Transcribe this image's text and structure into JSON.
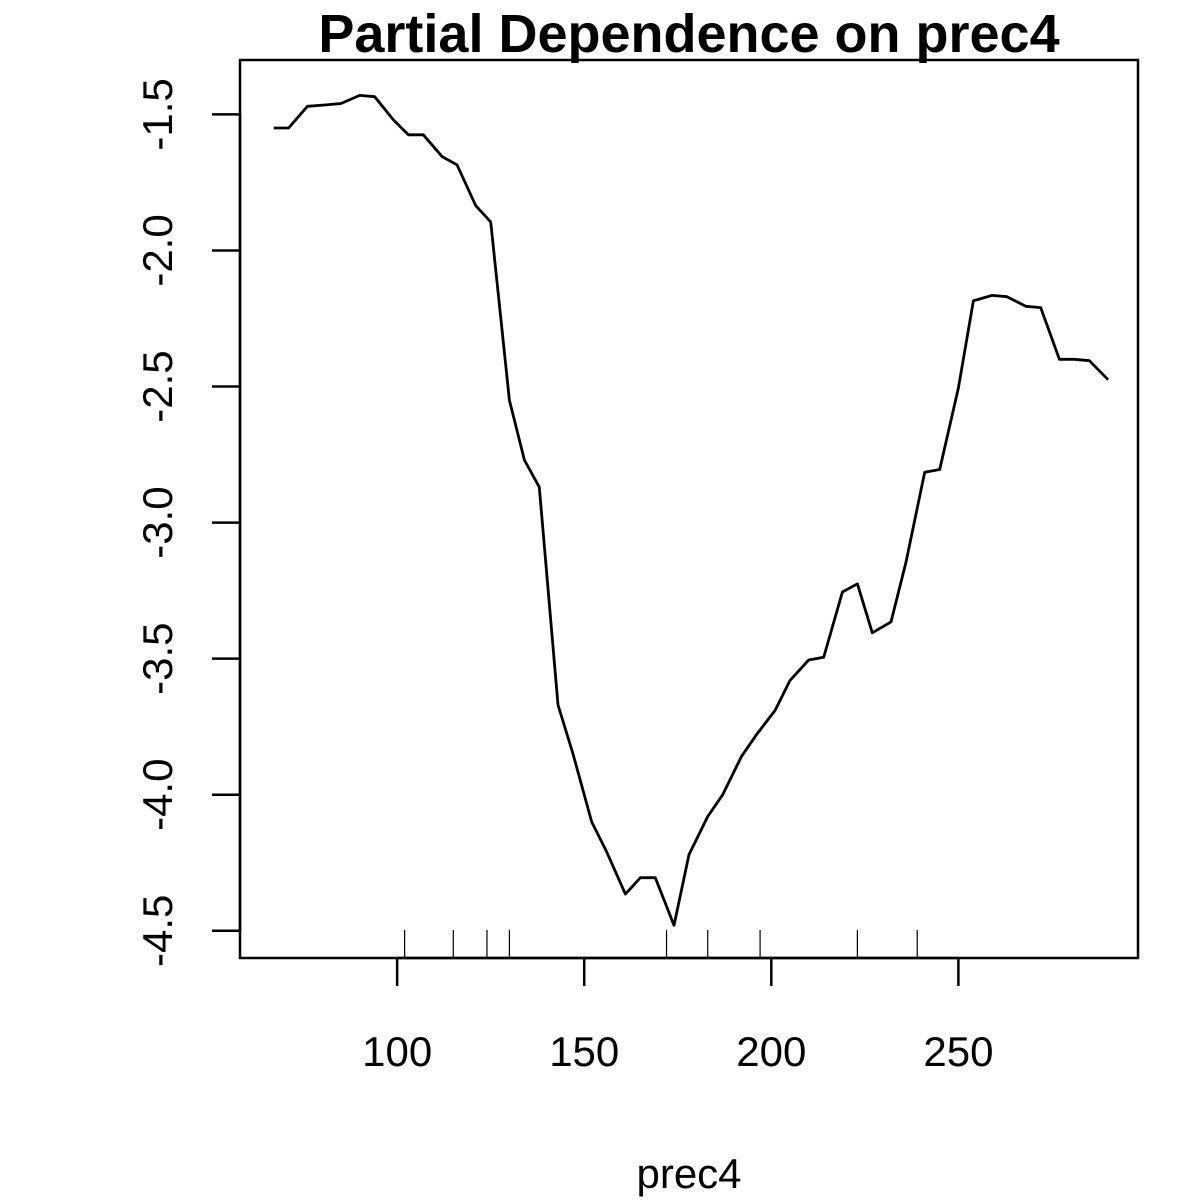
{
  "chart_data": {
    "type": "line",
    "title": "Partial Dependence on prec4",
    "xlabel": "prec4",
    "ylabel": "",
    "xlim": [
      58,
      298
    ],
    "ylim": [
      -4.6,
      -1.3
    ],
    "x_ticks": [
      {
        "value": 100,
        "label": "100"
      },
      {
        "value": 150,
        "label": "150"
      },
      {
        "value": 200,
        "label": "200"
      },
      {
        "value": 250,
        "label": "250"
      }
    ],
    "y_ticks": [
      {
        "value": -1.5,
        "label": "-1.5"
      },
      {
        "value": -2.0,
        "label": "-2.0"
      },
      {
        "value": -2.5,
        "label": "-2.5"
      },
      {
        "value": -3.0,
        "label": "-3.0"
      },
      {
        "value": -3.5,
        "label": "-3.5"
      },
      {
        "value": -4.0,
        "label": "-4.0"
      },
      {
        "value": -4.5,
        "label": "-4.5"
      }
    ],
    "grid": false,
    "rug": [
      102,
      115,
      124,
      130,
      172,
      183,
      197,
      223,
      239
    ],
    "series": [
      {
        "x": [
          67,
          71,
          76,
          81,
          85,
          90,
          94,
          99,
          103,
          107,
          112,
          116,
          121,
          125,
          130,
          134,
          138,
          143,
          147,
          152,
          156,
          161,
          165,
          169,
          174,
          178,
          183,
          187,
          192,
          196,
          201,
          205,
          210,
          214,
          219,
          223,
          227,
          232,
          236,
          241,
          245,
          250,
          254,
          259,
          263,
          268,
          272,
          277,
          281,
          285,
          290
        ],
        "y": [
          -1.55,
          -1.55,
          -1.47,
          -1.465,
          -1.46,
          -1.43,
          -1.435,
          -1.52,
          -1.575,
          -1.575,
          -1.655,
          -1.685,
          -1.835,
          -1.895,
          -2.55,
          -2.77,
          -2.87,
          -3.67,
          -3.85,
          -4.1,
          -4.21,
          -4.365,
          -4.305,
          -4.305,
          -4.48,
          -4.22,
          -4.08,
          -4.0,
          -3.86,
          -3.78,
          -3.69,
          -3.58,
          -3.505,
          -3.495,
          -3.255,
          -3.225,
          -3.405,
          -3.365,
          -3.145,
          -2.815,
          -2.805,
          -2.505,
          -2.185,
          -2.165,
          -2.17,
          -2.205,
          -2.21,
          -2.4,
          -2.4,
          -2.405,
          -2.475
        ]
      }
    ]
  }
}
